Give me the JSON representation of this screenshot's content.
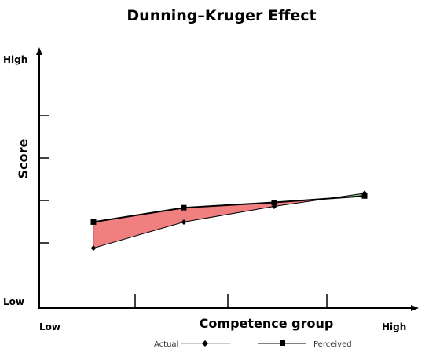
{
  "chart_data": {
    "type": "line",
    "title": "Dunning–Kruger Effect",
    "xlabel": "Competence group",
    "ylabel": "Score",
    "x_low_label": "Low",
    "x_high_label": "High",
    "y_low_label": "Low",
    "y_high_label": "High",
    "x": [
      1,
      2,
      3,
      4
    ],
    "xlim": [
      0.4,
      4.6
    ],
    "ylim": [
      0,
      10
    ],
    "series": [
      {
        "name": "Actual",
        "values": [
          2.3,
          3.3,
          3.9,
          4.4
        ],
        "marker": "diamond",
        "color": "#000000"
      },
      {
        "name": "Perceived",
        "values": [
          3.3,
          3.85,
          4.05,
          4.3
        ],
        "marker": "square",
        "color": "#000000"
      }
    ],
    "fill_overestimate_color": "#f08080",
    "fill_underestimate_color": "#90d090",
    "legend_position": "bottom",
    "legend_line_color": "#999999",
    "grid": false
  }
}
